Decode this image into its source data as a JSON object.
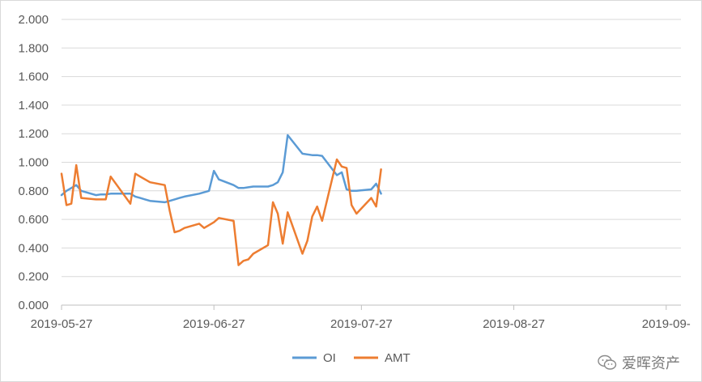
{
  "chart_data": {
    "type": "line",
    "y_ticks": [
      "0.000",
      "0.200",
      "0.400",
      "0.600",
      "0.800",
      "1.000",
      "1.200",
      "1.400",
      "1.600",
      "1.800",
      "2.000"
    ],
    "ylim": [
      0,
      2
    ],
    "x_ticks": [
      "2019-05-27",
      "2019-06-27",
      "2019-07-27",
      "2019-08-27",
      "2019-09-"
    ],
    "xlim": [
      "2019-05-27",
      "2019-09-30"
    ],
    "grid": "horizontal",
    "legend_position": "bottom",
    "colors": {
      "OI": "#5b9bd5",
      "AMT": "#ed7d31",
      "grid": "#d9d9d9",
      "axis": "#bfbfbf"
    },
    "series": [
      {
        "name": "OI",
        "points": [
          [
            "2019-05-27",
            0.77
          ],
          [
            "2019-05-28",
            0.8
          ],
          [
            "2019-05-29",
            0.82
          ],
          [
            "2019-05-30",
            0.84
          ],
          [
            "2019-05-31",
            0.8
          ],
          [
            "2019-06-03",
            0.77
          ],
          [
            "2019-06-04",
            0.775
          ],
          [
            "2019-06-05",
            0.775
          ],
          [
            "2019-06-06",
            0.78
          ],
          [
            "2019-06-10",
            0.78
          ],
          [
            "2019-06-11",
            0.76
          ],
          [
            "2019-06-12",
            0.75
          ],
          [
            "2019-06-13",
            0.74
          ],
          [
            "2019-06-14",
            0.73
          ],
          [
            "2019-06-17",
            0.72
          ],
          [
            "2019-06-18",
            0.73
          ],
          [
            "2019-06-19",
            0.74
          ],
          [
            "2019-06-20",
            0.75
          ],
          [
            "2019-06-21",
            0.76
          ],
          [
            "2019-06-24",
            0.78
          ],
          [
            "2019-06-25",
            0.79
          ],
          [
            "2019-06-26",
            0.8
          ],
          [
            "2019-06-27",
            0.94
          ],
          [
            "2019-06-28",
            0.88
          ],
          [
            "2019-07-01",
            0.84
          ],
          [
            "2019-07-02",
            0.82
          ],
          [
            "2019-07-03",
            0.82
          ],
          [
            "2019-07-04",
            0.825
          ],
          [
            "2019-07-05",
            0.83
          ],
          [
            "2019-07-08",
            0.83
          ],
          [
            "2019-07-09",
            0.84
          ],
          [
            "2019-07-10",
            0.86
          ],
          [
            "2019-07-11",
            0.93
          ],
          [
            "2019-07-12",
            1.19
          ],
          [
            "2019-07-15",
            1.06
          ],
          [
            "2019-07-16",
            1.055
          ],
          [
            "2019-07-17",
            1.05
          ],
          [
            "2019-07-18",
            1.05
          ],
          [
            "2019-07-19",
            1.045
          ],
          [
            "2019-07-22",
            0.91
          ],
          [
            "2019-07-23",
            0.93
          ],
          [
            "2019-07-24",
            0.81
          ],
          [
            "2019-07-25",
            0.8
          ],
          [
            "2019-07-26",
            0.8
          ],
          [
            "2019-07-29",
            0.81
          ],
          [
            "2019-07-30",
            0.85
          ],
          [
            "2019-07-31",
            0.78
          ]
        ]
      },
      {
        "name": "AMT",
        "points": [
          [
            "2019-05-27",
            0.92
          ],
          [
            "2019-05-28",
            0.7
          ],
          [
            "2019-05-29",
            0.71
          ],
          [
            "2019-05-30",
            0.98
          ],
          [
            "2019-05-31",
            0.75
          ],
          [
            "2019-06-03",
            0.74
          ],
          [
            "2019-06-04",
            0.74
          ],
          [
            "2019-06-05",
            0.74
          ],
          [
            "2019-06-06",
            0.9
          ],
          [
            "2019-06-10",
            0.71
          ],
          [
            "2019-06-11",
            0.92
          ],
          [
            "2019-06-12",
            0.9
          ],
          [
            "2019-06-13",
            0.88
          ],
          [
            "2019-06-14",
            0.86
          ],
          [
            "2019-06-17",
            0.84
          ],
          [
            "2019-06-18",
            0.66
          ],
          [
            "2019-06-19",
            0.51
          ],
          [
            "2019-06-20",
            0.52
          ],
          [
            "2019-06-21",
            0.54
          ],
          [
            "2019-06-24",
            0.57
          ],
          [
            "2019-06-25",
            0.54
          ],
          [
            "2019-06-26",
            0.56
          ],
          [
            "2019-06-27",
            0.58
          ],
          [
            "2019-06-28",
            0.61
          ],
          [
            "2019-07-01",
            0.59
          ],
          [
            "2019-07-02",
            0.28
          ],
          [
            "2019-07-03",
            0.31
          ],
          [
            "2019-07-04",
            0.32
          ],
          [
            "2019-07-05",
            0.36
          ],
          [
            "2019-07-08",
            0.42
          ],
          [
            "2019-07-09",
            0.72
          ],
          [
            "2019-07-10",
            0.64
          ],
          [
            "2019-07-11",
            0.43
          ],
          [
            "2019-07-12",
            0.65
          ],
          [
            "2019-07-15",
            0.36
          ],
          [
            "2019-07-16",
            0.45
          ],
          [
            "2019-07-17",
            0.62
          ],
          [
            "2019-07-18",
            0.69
          ],
          [
            "2019-07-19",
            0.59
          ],
          [
            "2019-07-22",
            1.02
          ],
          [
            "2019-07-23",
            0.97
          ],
          [
            "2019-07-24",
            0.96
          ],
          [
            "2019-07-25",
            0.7
          ],
          [
            "2019-07-26",
            0.64
          ],
          [
            "2019-07-29",
            0.75
          ],
          [
            "2019-07-30",
            0.69
          ],
          [
            "2019-07-31",
            0.95
          ]
        ]
      }
    ]
  },
  "legend": {
    "oi_label": "OI",
    "amt_label": "AMT"
  },
  "watermark": {
    "text": "爱晖资产",
    "icon": "wechat-icon"
  }
}
